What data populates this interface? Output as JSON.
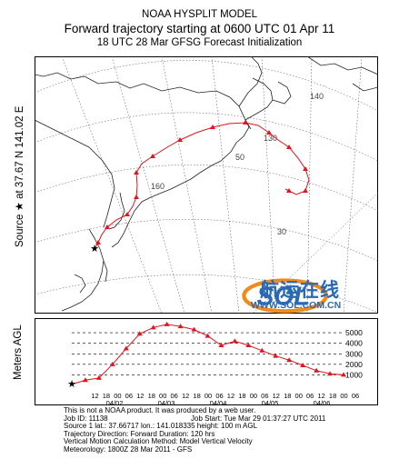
{
  "title": {
    "line1": "NOAA HYSPLIT MODEL",
    "line2": "Forward trajectory starting at 0600 UTC 01 Apr 11",
    "line3": "18 UTC 28 Mar    GFSG  Forecast Initialization"
  },
  "side_label": {
    "source": "Source ★ at  37.67 N  141.02 E"
  },
  "map": {
    "grid_labels": [
      {
        "text": "140"
      },
      {
        "text": "130"
      },
      {
        "text": "160"
      },
      {
        "text": "50"
      },
      {
        "text": "30"
      }
    ],
    "trajectory_color": "#e0141e",
    "source_marker": "star-icon"
  },
  "watermark": {
    "logo_text": "SOL",
    "chinese": "航运在线",
    "url": "WWW.SOL.COM.CN"
  },
  "altitude_panel": {
    "ylabel": "Meters AGL",
    "base_label": "100",
    "levels": [
      "5000",
      "4000",
      "3000",
      "2000",
      "1000"
    ],
    "hour_ticks": [
      "12",
      "18",
      "00",
      "06",
      "12",
      "18",
      "00",
      "06",
      "12",
      "18",
      "00",
      "06",
      "12",
      "18",
      "00",
      "06",
      "12",
      "18",
      "00",
      "06",
      "12",
      "18",
      "00",
      "06"
    ],
    "date_labels": [
      "04/02",
      "04/03",
      "04/04",
      "04/05",
      "04/06"
    ]
  },
  "chart_data": {
    "type": "line",
    "title": "",
    "xlabel": "",
    "ylabel": "Meters AGL",
    "x": [
      "04/01 06",
      "04/01 12",
      "04/01 18",
      "04/02 00",
      "04/02 06",
      "04/02 12",
      "04/02 18",
      "04/03 00",
      "04/03 06",
      "04/03 12",
      "04/03 18",
      "04/04 00",
      "04/04 06",
      "04/04 12",
      "04/04 18",
      "04/05 00",
      "04/05 06",
      "04/05 12",
      "04/05 18",
      "04/06 00",
      "04/06 06"
    ],
    "series": [
      {
        "values": [
          100,
          500,
          700,
          2000,
          3500,
          4900,
          5500,
          5800,
          5600,
          5300,
          4700,
          3800,
          4200,
          3800,
          3300,
          2800,
          2400,
          1900,
          1400,
          1100,
          1000
        ]
      }
    ],
    "ylim": [
      0,
      5700
    ],
    "color": "#e0141e"
  },
  "info": {
    "lines": [
      [
        "This is not a NOAA product. It was produced by a web user.",
        ""
      ],
      [
        "Job ID: 11138",
        "Job Start: Tue Mar 29 01:37:27 UTC 2011"
      ],
      [
        "Source 1    lat.: 37.66717    lon.: 141.018335    height: 100 m AGL",
        ""
      ],
      [
        "Trajectory Direction: Forward     Duration: 120 hrs",
        ""
      ],
      [
        "Vertical Motion Calculation Method:       Model Vertical Velocity",
        ""
      ],
      [
        "Meteorology: 1800Z 28 Mar 2011 - GFS",
        ""
      ]
    ]
  }
}
